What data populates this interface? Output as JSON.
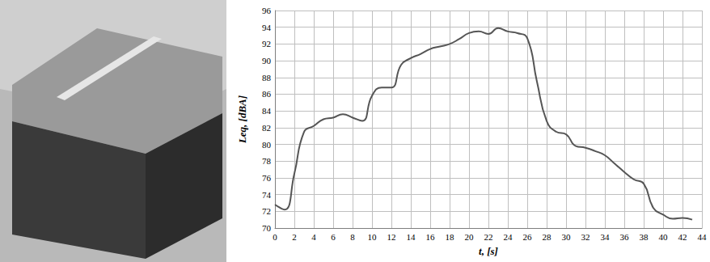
{
  "chart_data": {
    "type": "line",
    "x_label": "t, [s]",
    "y_label": "Leq, [dBA]",
    "x": [
      0,
      1,
      2,
      3,
      4,
      5,
      6,
      7,
      8,
      9,
      10,
      11,
      12,
      13,
      14,
      15,
      16,
      17,
      18,
      19,
      20,
      21,
      22,
      23,
      24,
      25,
      26,
      27,
      28,
      29,
      30,
      31,
      32,
      33,
      34,
      35,
      36,
      37,
      38,
      39,
      40,
      41,
      42,
      43
    ],
    "values": [
      72.8,
      72.2,
      76.5,
      81.5,
      82.2,
      83.0,
      83.2,
      83.6,
      83.2,
      82.8,
      85.8,
      86.8,
      86.8,
      89.5,
      90.3,
      90.8,
      91.4,
      91.7,
      92.0,
      92.6,
      93.3,
      93.5,
      93.2,
      93.9,
      93.5,
      93.3,
      92.7,
      87.5,
      82.8,
      81.5,
      81.2,
      79.8,
      79.6,
      79.2,
      78.7,
      77.7,
      76.7,
      75.8,
      75.3,
      72.4,
      71.6,
      71.1,
      71.2,
      71.0
    ],
    "color": "#555555",
    "xlim": [
      0,
      44
    ],
    "xticks": [
      0,
      2,
      4,
      6,
      8,
      10,
      12,
      14,
      16,
      18,
      20,
      22,
      24,
      26,
      28,
      30,
      32,
      34,
      36,
      38,
      40,
      42,
      44
    ],
    "ylim": [
      70,
      96
    ],
    "yticks": [
      70,
      72,
      74,
      76,
      78,
      80,
      82,
      84,
      86,
      88,
      90,
      92,
      94,
      96
    ],
    "grid": true
  }
}
